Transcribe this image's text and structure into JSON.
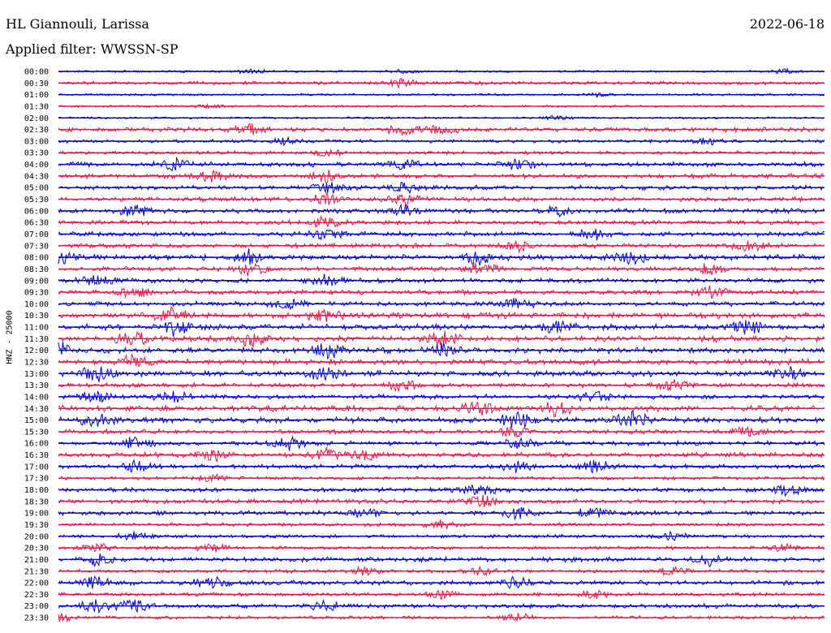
{
  "header": {
    "station": "HL Giannouli, Larissa",
    "filter": "Applied filter: WWSSN-SP",
    "date": "2022-06-18"
  },
  "colors": {
    "even_trace": "#0000dd",
    "odd_trace": "#ee1144",
    "text": "#000000",
    "background": "#ffffff"
  },
  "chart_data": {
    "type": "line",
    "title": "",
    "ylabel": "HNZ - 25000",
    "xlabel": "",
    "grid": false,
    "legend": "none",
    "rows": [
      {
        "time": "00:00",
        "amplitude": 1,
        "events": [
          0.25,
          0.45,
          0.95
        ]
      },
      {
        "time": "00:30",
        "amplitude": 2,
        "events": [
          0.45
        ]
      },
      {
        "time": "01:00",
        "amplitude": 1,
        "events": [
          0.7
        ]
      },
      {
        "time": "01:30",
        "amplitude": 1,
        "events": [
          0.2
        ]
      },
      {
        "time": "02:00",
        "amplitude": 1,
        "events": [
          0.65
        ]
      },
      {
        "time": "02:30",
        "amplitude": 3,
        "events": [
          0.25,
          0.45,
          0.5
        ]
      },
      {
        "time": "03:00",
        "amplitude": 2,
        "events": [
          0.3,
          0.85
        ]
      },
      {
        "time": "03:30",
        "amplitude": 2,
        "events": [
          0.35
        ]
      },
      {
        "time": "04:00",
        "amplitude": 3,
        "events": [
          0.15,
          0.45,
          0.6
        ]
      },
      {
        "time": "04:30",
        "amplitude": 3,
        "events": [
          0.2,
          0.35
        ]
      },
      {
        "time": "05:00",
        "amplitude": 3,
        "events": [
          0.35,
          0.45
        ]
      },
      {
        "time": "05:30",
        "amplitude": 3,
        "events": [
          0.35,
          0.45
        ]
      },
      {
        "time": "06:00",
        "amplitude": 3,
        "events": [
          0.1,
          0.45,
          0.65
        ]
      },
      {
        "time": "06:30",
        "amplitude": 3,
        "events": [
          0.35
        ]
      },
      {
        "time": "07:00",
        "amplitude": 3,
        "events": [
          0.35,
          0.7
        ]
      },
      {
        "time": "07:30",
        "amplitude": 3,
        "events": [
          0.6,
          0.9
        ]
      },
      {
        "time": "08:00",
        "amplitude": 4,
        "events": [
          0.0,
          0.25,
          0.55,
          0.75
        ]
      },
      {
        "time": "08:30",
        "amplitude": 3,
        "events": [
          0.25,
          0.55,
          0.85
        ]
      },
      {
        "time": "09:00",
        "amplitude": 3,
        "events": [
          0.05,
          0.35
        ]
      },
      {
        "time": "09:30",
        "amplitude": 3,
        "events": [
          0.1,
          0.85
        ]
      },
      {
        "time": "10:00",
        "amplitude": 3,
        "events": [
          0.3,
          0.6
        ]
      },
      {
        "time": "10:30",
        "amplitude": 4,
        "events": [
          0.15,
          0.35
        ]
      },
      {
        "time": "11:00",
        "amplitude": 4,
        "events": [
          0.15,
          0.65,
          0.9
        ]
      },
      {
        "time": "11:30",
        "amplitude": 4,
        "events": [
          0.1,
          0.25,
          0.5
        ]
      },
      {
        "time": "12:00",
        "amplitude": 4,
        "events": [
          0.0,
          0.35,
          0.5
        ]
      },
      {
        "time": "12:30",
        "amplitude": 4,
        "events": [
          0.1
        ]
      },
      {
        "time": "13:00",
        "amplitude": 4,
        "events": [
          0.05,
          0.35,
          0.95
        ]
      },
      {
        "time": "13:30",
        "amplitude": 3,
        "events": [
          0.45,
          0.8
        ]
      },
      {
        "time": "14:00",
        "amplitude": 3,
        "events": [
          0.05,
          0.15,
          0.7
        ]
      },
      {
        "time": "14:30",
        "amplitude": 4,
        "events": [
          0.55,
          0.65
        ]
      },
      {
        "time": "15:00",
        "amplitude": 4,
        "events": [
          0.05,
          0.6,
          0.75
        ]
      },
      {
        "time": "15:30",
        "amplitude": 3,
        "events": [
          0.6,
          0.9
        ]
      },
      {
        "time": "16:00",
        "amplitude": 3,
        "events": [
          0.1,
          0.3,
          0.6
        ]
      },
      {
        "time": "16:30",
        "amplitude": 3,
        "events": [
          0.2,
          0.35,
          0.4
        ]
      },
      {
        "time": "17:00",
        "amplitude": 3,
        "events": [
          0.1,
          0.6,
          0.7
        ]
      },
      {
        "time": "17:30",
        "amplitude": 2,
        "events": [
          0.2
        ]
      },
      {
        "time": "18:00",
        "amplitude": 3,
        "events": [
          0.55,
          0.95
        ]
      },
      {
        "time": "18:30",
        "amplitude": 3,
        "events": [
          0.55
        ]
      },
      {
        "time": "19:00",
        "amplitude": 3,
        "events": [
          0.4,
          0.6,
          0.7
        ]
      },
      {
        "time": "19:30",
        "amplitude": 2,
        "events": [
          0.5
        ]
      },
      {
        "time": "20:00",
        "amplitude": 2,
        "events": [
          0.1,
          0.8
        ]
      },
      {
        "time": "20:30",
        "amplitude": 2,
        "events": [
          0.05,
          0.2,
          0.95
        ]
      },
      {
        "time": "21:00",
        "amplitude": 3,
        "events": [
          0.05,
          0.85
        ]
      },
      {
        "time": "21:30",
        "amplitude": 2,
        "events": [
          0.4,
          0.55,
          0.8
        ]
      },
      {
        "time": "22:00",
        "amplitude": 3,
        "events": [
          0.05,
          0.2,
          0.6
        ]
      },
      {
        "time": "22:30",
        "amplitude": 2,
        "events": [
          0.5,
          0.7
        ]
      },
      {
        "time": "23:00",
        "amplitude": 3,
        "events": [
          0.05,
          0.1,
          0.35
        ]
      },
      {
        "time": "23:30",
        "amplitude": 2,
        "events": [
          0.0,
          0.6
        ]
      }
    ]
  }
}
